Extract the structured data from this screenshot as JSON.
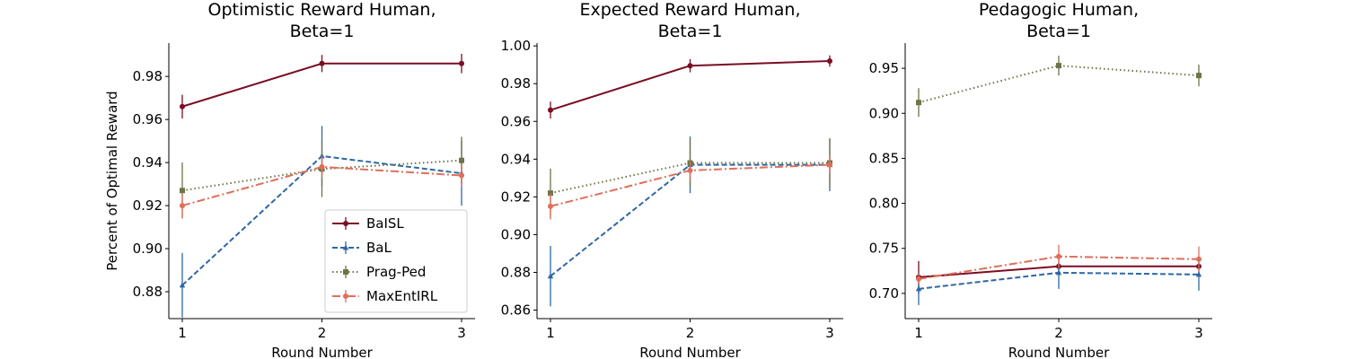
{
  "chart_data": [
    {
      "type": "line",
      "title": [
        "Optimistic Reward Human,",
        "Beta=1"
      ],
      "xlabel": "Round Number",
      "ylabel": "Percent of Optimal Reward",
      "x": [
        1,
        2,
        3
      ],
      "ylim": [
        0.8675,
        0.9955
      ],
      "yticks": [
        "0.88",
        "0.90",
        "0.92",
        "0.94",
        "0.96",
        "0.98"
      ],
      "series": [
        {
          "name": "BaISL",
          "values": [
            0.966,
            0.986,
            0.986
          ],
          "error": [
            0.0055,
            0.004,
            0.0045
          ]
        },
        {
          "name": "BaL",
          "values": [
            0.883,
            0.943,
            0.935
          ],
          "error": [
            0.015,
            0.014,
            0.015
          ]
        },
        {
          "name": "Prag-Ped",
          "values": [
            0.927,
            0.937,
            0.941
          ],
          "error": [
            0.013,
            0.013,
            0.011
          ]
        },
        {
          "name": "MaxEntIRL",
          "values": [
            0.92,
            0.938,
            0.934
          ],
          "error": [
            0.006,
            0.005,
            0.005
          ]
        }
      ],
      "legend": "lower-right"
    },
    {
      "type": "line",
      "title": [
        "Expected Reward Human,",
        "Beta=1"
      ],
      "xlabel": "Round Number",
      "ylabel": "",
      "x": [
        1,
        2,
        3
      ],
      "ylim": [
        0.8555,
        1.0015
      ],
      "yticks": [
        "0.86",
        "0.88",
        "0.90",
        "0.92",
        "0.94",
        "0.96",
        "0.98",
        "1.00"
      ],
      "series": [
        {
          "name": "BaISL",
          "values": [
            0.966,
            0.9895,
            0.992
          ],
          "error": [
            0.0045,
            0.0035,
            0.003
          ]
        },
        {
          "name": "BaL",
          "values": [
            0.878,
            0.937,
            0.937
          ],
          "error": [
            0.016,
            0.015,
            0.014
          ]
        },
        {
          "name": "Prag-Ped",
          "values": [
            0.922,
            0.938,
            0.938
          ],
          "error": [
            0.013,
            0.013,
            0.013
          ]
        },
        {
          "name": "MaxEntIRL",
          "values": [
            0.915,
            0.934,
            0.937
          ],
          "error": [
            0.007,
            0.005,
            0.005
          ]
        }
      ]
    },
    {
      "type": "line",
      "title": [
        "Pedagogic Human,",
        "Beta=1"
      ],
      "xlabel": "Round Number",
      "ylabel": "",
      "x": [
        1,
        2,
        3
      ],
      "ylim": [
        0.672,
        0.978
      ],
      "yticks": [
        "0.70",
        "0.75",
        "0.80",
        "0.85",
        "0.90",
        "0.95"
      ],
      "series": [
        {
          "name": "BaISL",
          "values": [
            0.718,
            0.73,
            0.73
          ],
          "error": [
            0.018,
            0.004,
            0.004
          ]
        },
        {
          "name": "BaL",
          "values": [
            0.705,
            0.723,
            0.721
          ],
          "error": [
            0.018,
            0.018,
            0.018
          ]
        },
        {
          "name": "Prag-Ped",
          "values": [
            0.912,
            0.953,
            0.942
          ],
          "error": [
            0.016,
            0.011,
            0.012
          ]
        },
        {
          "name": "MaxEntIRL",
          "values": [
            0.716,
            0.741,
            0.738
          ],
          "error": [
            0.006,
            0.013,
            0.014
          ]
        }
      ]
    }
  ],
  "style": {
    "colors": {
      "BaISL": "#7b0d24",
      "BaL": "#2e67a5",
      "Prag-Ped": "#6d7448",
      "MaxEntIRL": "#e06e5a"
    },
    "dashes": {
      "BaISL": "",
      "BaL": "6 3",
      "Prag-Ped": "1.5 3",
      "MaxEntIRL": "9 3 2 3"
    },
    "markers": {
      "BaISL": "circle",
      "BaL": "triangle",
      "Prag-Ped": "square",
      "MaxEntIRL": "circle"
    }
  }
}
